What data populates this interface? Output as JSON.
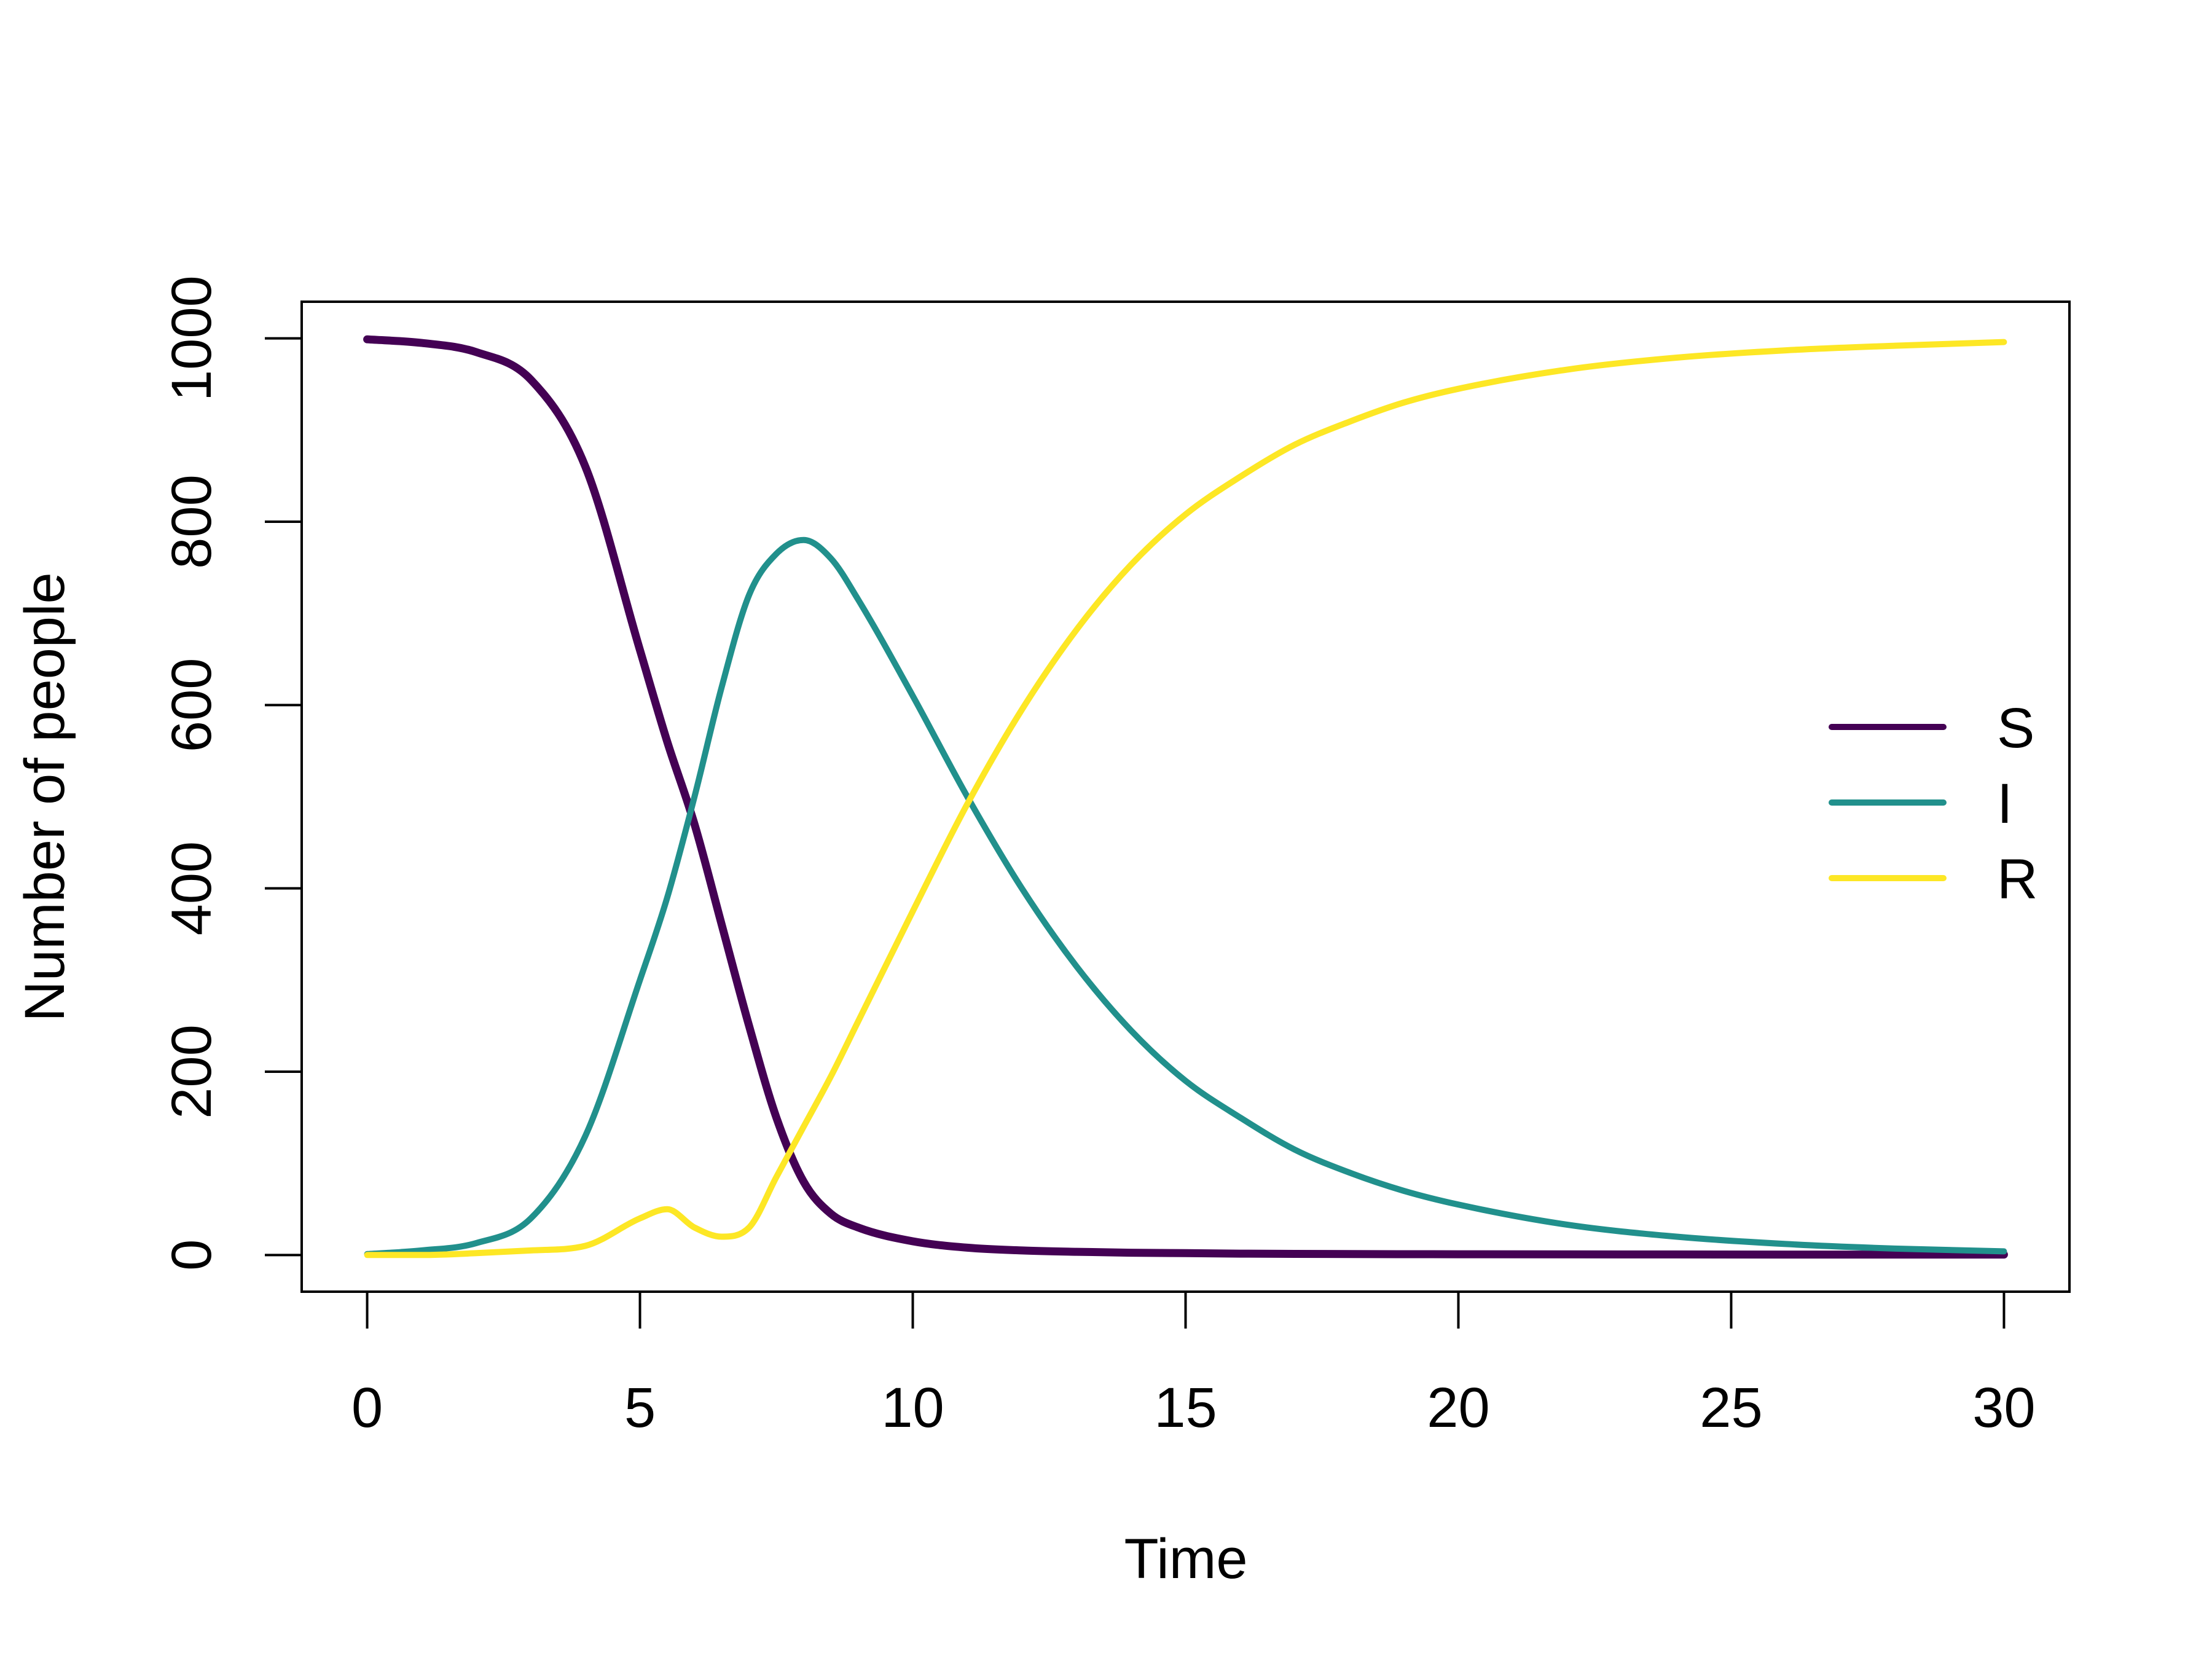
{
  "chart_data": {
    "type": "line",
    "title": "",
    "xlabel": "Time",
    "ylabel": "Number of people",
    "xlim": [
      -1.2,
      31.2
    ],
    "ylim": [
      -40,
      1040
    ],
    "x_ticks": [
      0,
      5,
      10,
      15,
      20,
      25,
      30
    ],
    "y_ticks": [
      0,
      200,
      400,
      600,
      800,
      1000
    ],
    "grid": false,
    "legend_position": "right",
    "x": [
      0,
      1,
      2,
      3,
      4,
      5,
      5.5,
      6,
      6.5,
      7,
      7.5,
      8,
      8.5,
      9,
      10,
      11,
      12,
      13,
      14,
      15,
      16,
      17,
      18,
      19,
      20,
      22,
      24,
      26,
      28,
      30
    ],
    "series": [
      {
        "name": "S",
        "color": "#440154",
        "width": 13,
        "values": [
          999,
          995,
          985,
          955,
          860,
          660,
          560,
          470,
          360,
          250,
          150,
          80,
          45,
          30,
          15,
          8,
          5,
          3.5,
          2.5,
          2,
          1.5,
          1.2,
          1,
          0.9,
          0.8,
          0.7,
          0.6,
          0.5,
          0.5,
          0.5
        ]
      },
      {
        "name": "I",
        "color": "#21908C",
        "width": 10,
        "values": [
          1,
          5,
          13,
          40,
          130,
          300,
          390,
          500,
          620,
          720,
          765,
          780,
          760,
          715,
          610,
          500,
          400,
          315,
          245,
          190,
          150,
          115,
          90,
          70,
          55,
          33,
          20,
          12,
          7,
          4
        ]
      },
      {
        "name": "R",
        "color": "#FDE725",
        "width": 10,
        "values": [
          0,
          0,
          2,
          5,
          10,
          40,
          50,
          30,
          20,
          30,
          85,
          140,
          195,
          255,
          375,
          492,
          595,
          682,
          753,
          808,
          849,
          884,
          909,
          930,
          945,
          966,
          979,
          987,
          992,
          996
        ]
      }
    ]
  }
}
